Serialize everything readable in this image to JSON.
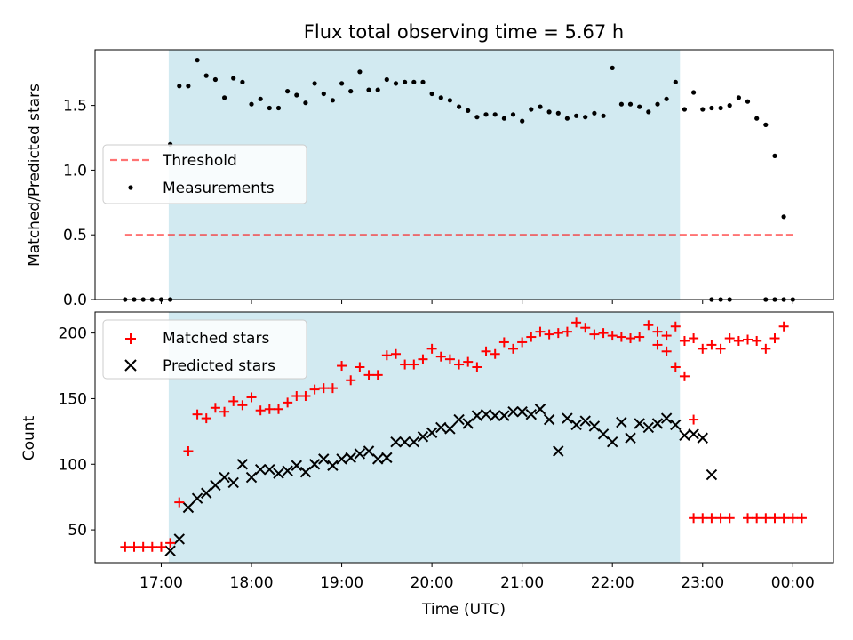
{
  "chart_data": [
    {
      "type": "scatter",
      "title": "Flux total observing time = 5.67 h",
      "xlabel": "",
      "ylabel": "Matched/Predicted stars",
      "xlim": [
        "16:16",
        "00:27"
      ],
      "ylim": [
        0,
        1.93
      ],
      "yticks": [
        "0.0",
        "0.5",
        "1.0",
        "1.5"
      ],
      "observing_window": [
        "17:05",
        "22:45"
      ],
      "threshold": {
        "value": 0.5,
        "from": "16:36",
        "to": "00:00"
      },
      "legend": {
        "position": "center-left",
        "entries": [
          "Threshold",
          "Measurements"
        ]
      },
      "series": [
        {
          "name": "Measurements",
          "marker": "dot",
          "color": "#000000",
          "points": [
            [
              "16:36",
              0
            ],
            [
              "16:42",
              0
            ],
            [
              "16:48",
              0
            ],
            [
              "16:54",
              0
            ],
            [
              "17:00",
              0
            ],
            [
              "17:06",
              0
            ],
            [
              "17:06",
              1.2
            ],
            [
              "17:12",
              1.65
            ],
            [
              "17:18",
              1.65
            ],
            [
              "17:24",
              1.85
            ],
            [
              "17:30",
              1.73
            ],
            [
              "17:36",
              1.7
            ],
            [
              "17:42",
              1.56
            ],
            [
              "17:48",
              1.71
            ],
            [
              "17:54",
              1.68
            ],
            [
              "18:00",
              1.51
            ],
            [
              "18:06",
              1.55
            ],
            [
              "18:12",
              1.48
            ],
            [
              "18:18",
              1.48
            ],
            [
              "18:24",
              1.61
            ],
            [
              "18:30",
              1.58
            ],
            [
              "18:36",
              1.52
            ],
            [
              "18:42",
              1.67
            ],
            [
              "18:48",
              1.59
            ],
            [
              "18:54",
              1.54
            ],
            [
              "19:00",
              1.67
            ],
            [
              "19:06",
              1.61
            ],
            [
              "19:12",
              1.76
            ],
            [
              "19:18",
              1.62
            ],
            [
              "19:24",
              1.62
            ],
            [
              "19:30",
              1.7
            ],
            [
              "19:36",
              1.67
            ],
            [
              "19:42",
              1.68
            ],
            [
              "19:48",
              1.68
            ],
            [
              "19:54",
              1.68
            ],
            [
              "20:00",
              1.59
            ],
            [
              "20:06",
              1.56
            ],
            [
              "20:12",
              1.54
            ],
            [
              "20:18",
              1.49
            ],
            [
              "20:24",
              1.46
            ],
            [
              "20:30",
              1.41
            ],
            [
              "20:36",
              1.43
            ],
            [
              "20:42",
              1.43
            ],
            [
              "20:48",
              1.4
            ],
            [
              "20:54",
              1.43
            ],
            [
              "21:00",
              1.38
            ],
            [
              "21:06",
              1.47
            ],
            [
              "21:12",
              1.49
            ],
            [
              "21:18",
              1.45
            ],
            [
              "21:24",
              1.44
            ],
            [
              "21:30",
              1.4
            ],
            [
              "21:36",
              1.42
            ],
            [
              "21:42",
              1.41
            ],
            [
              "21:48",
              1.44
            ],
            [
              "21:54",
              1.42
            ],
            [
              "22:00",
              1.79
            ],
            [
              "22:06",
              1.51
            ],
            [
              "22:12",
              1.51
            ],
            [
              "22:18",
              1.49
            ],
            [
              "22:24",
              1.45
            ],
            [
              "22:30",
              1.51
            ],
            [
              "22:36",
              1.55
            ],
            [
              "22:42",
              1.68
            ],
            [
              "22:48",
              1.47
            ],
            [
              "22:54",
              1.6
            ],
            [
              "23:00",
              1.47
            ],
            [
              "23:06",
              1.48
            ],
            [
              "23:12",
              1.48
            ],
            [
              "23:18",
              1.5
            ],
            [
              "23:24",
              1.56
            ],
            [
              "23:30",
              1.53
            ],
            [
              "23:36",
              1.4
            ],
            [
              "23:42",
              1.35
            ],
            [
              "23:48",
              1.11
            ],
            [
              "23:54",
              0.64
            ],
            [
              "23:06",
              0
            ],
            [
              "23:12",
              0
            ],
            [
              "23:18",
              0
            ],
            [
              "23:42",
              0
            ],
            [
              "23:48",
              0
            ],
            [
              "23:54",
              0
            ],
            [
              "00:00",
              0
            ]
          ]
        }
      ]
    },
    {
      "type": "scatter",
      "title": "",
      "xlabel": "Time (UTC)",
      "ylabel": "Count",
      "xlim": [
        "16:16",
        "00:27"
      ],
      "ylim": [
        25,
        216
      ],
      "xticks": [
        "17:00",
        "18:00",
        "19:00",
        "20:00",
        "21:00",
        "22:00",
        "23:00",
        "00:00"
      ],
      "yticks": [
        "50",
        "100",
        "150",
        "200"
      ],
      "observing_window": [
        "17:05",
        "22:45"
      ],
      "legend": {
        "position": "top-left",
        "entries": [
          "Matched stars",
          "Predicted stars"
        ]
      },
      "series": [
        {
          "name": "Matched stars",
          "marker": "plus",
          "color": "#ff0000",
          "points": [
            [
              "16:36",
              37
            ],
            [
              "16:42",
              37
            ],
            [
              "16:48",
              37
            ],
            [
              "16:54",
              37
            ],
            [
              "17:00",
              37
            ],
            [
              "17:06",
              40
            ],
            [
              "17:12",
              71
            ],
            [
              "17:18",
              110
            ],
            [
              "17:24",
              138
            ],
            [
              "17:30",
              135
            ],
            [
              "17:36",
              143
            ],
            [
              "17:42",
              140
            ],
            [
              "17:48",
              148
            ],
            [
              "17:54",
              145
            ],
            [
              "18:00",
              151
            ],
            [
              "18:06",
              141
            ],
            [
              "18:12",
              142
            ],
            [
              "18:18",
              142
            ],
            [
              "18:24",
              147
            ],
            [
              "18:30",
              152
            ],
            [
              "18:36",
              152
            ],
            [
              "18:42",
              157
            ],
            [
              "18:48",
              158
            ],
            [
              "18:54",
              158
            ],
            [
              "19:00",
              175
            ],
            [
              "19:06",
              164
            ],
            [
              "19:12",
              174
            ],
            [
              "19:18",
              168
            ],
            [
              "19:24",
              168
            ],
            [
              "19:30",
              183
            ],
            [
              "19:36",
              184
            ],
            [
              "19:42",
              176
            ],
            [
              "19:48",
              176
            ],
            [
              "19:54",
              180
            ],
            [
              "20:00",
              188
            ],
            [
              "20:06",
              182
            ],
            [
              "20:12",
              180
            ],
            [
              "20:18",
              176
            ],
            [
              "20:24",
              178
            ],
            [
              "20:30",
              174
            ],
            [
              "20:36",
              186
            ],
            [
              "20:42",
              184
            ],
            [
              "20:48",
              193
            ],
            [
              "20:54",
              188
            ],
            [
              "21:00",
              193
            ],
            [
              "21:06",
              197
            ],
            [
              "21:12",
              201
            ],
            [
              "21:18",
              199
            ],
            [
              "21:24",
              200
            ],
            [
              "21:30",
              201
            ],
            [
              "21:36",
              208
            ],
            [
              "21:42",
              204
            ],
            [
              "21:48",
              199
            ],
            [
              "21:54",
              200
            ],
            [
              "22:00",
              198
            ],
            [
              "22:06",
              197
            ],
            [
              "22:12",
              196
            ],
            [
              "22:18",
              197
            ],
            [
              "22:24",
              206
            ],
            [
              "22:30",
              191
            ],
            [
              "22:36",
              198
            ],
            [
              "22:42",
              205
            ],
            [
              "22:48",
              194
            ],
            [
              "22:54",
              196
            ],
            [
              "23:00",
              188
            ],
            [
              "23:06",
              191
            ],
            [
              "23:12",
              188
            ],
            [
              "23:18",
              196
            ],
            [
              "23:24",
              194
            ],
            [
              "23:30",
              195
            ],
            [
              "23:36",
              194
            ],
            [
              "23:42",
              188
            ],
            [
              "23:48",
              196
            ],
            [
              "23:54",
              205
            ],
            [
              "22:30",
              201
            ],
            [
              "22:36",
              186
            ],
            [
              "22:42",
              174
            ],
            [
              "22:48",
              167
            ],
            [
              "22:54",
              134
            ],
            [
              "22:54",
              59
            ],
            [
              "23:00",
              59
            ],
            [
              "23:06",
              59
            ],
            [
              "23:12",
              59
            ],
            [
              "23:18",
              59
            ],
            [
              "23:30",
              59
            ],
            [
              "23:36",
              59
            ],
            [
              "23:42",
              59
            ],
            [
              "23:48",
              59
            ],
            [
              "23:54",
              59
            ],
            [
              "00:00",
              59
            ],
            [
              "00:06",
              59
            ]
          ]
        },
        {
          "name": "Predicted stars",
          "marker": "x",
          "color": "#000000",
          "points": [
            [
              "17:06",
              34
            ],
            [
              "17:12",
              43
            ],
            [
              "17:18",
              67
            ],
            [
              "17:24",
              74
            ],
            [
              "17:30",
              78
            ],
            [
              "17:36",
              84
            ],
            [
              "17:42",
              90
            ],
            [
              "17:48",
              86
            ],
            [
              "17:54",
              100
            ],
            [
              "18:00",
              90
            ],
            [
              "18:06",
              96
            ],
            [
              "18:12",
              96
            ],
            [
              "18:18",
              93
            ],
            [
              "18:24",
              95
            ],
            [
              "18:30",
              99
            ],
            [
              "18:36",
              94
            ],
            [
              "18:42",
              100
            ],
            [
              "18:48",
              104
            ],
            [
              "18:54",
              99
            ],
            [
              "19:00",
              104
            ],
            [
              "19:06",
              105
            ],
            [
              "19:12",
              108
            ],
            [
              "19:18",
              110
            ],
            [
              "19:24",
              104
            ],
            [
              "19:30",
              105
            ],
            [
              "19:36",
              117
            ],
            [
              "19:42",
              117
            ],
            [
              "19:48",
              117
            ],
            [
              "19:54",
              121
            ],
            [
              "20:00",
              124
            ],
            [
              "20:06",
              128
            ],
            [
              "20:12",
              127
            ],
            [
              "20:18",
              134
            ],
            [
              "20:24",
              131
            ],
            [
              "20:30",
              137
            ],
            [
              "20:36",
              138
            ],
            [
              "20:42",
              137
            ],
            [
              "20:48",
              137
            ],
            [
              "20:54",
              140
            ],
            [
              "21:00",
              140
            ],
            [
              "21:06",
              138
            ],
            [
              "21:12",
              142
            ],
            [
              "21:18",
              134
            ],
            [
              "21:24",
              110
            ],
            [
              "21:30",
              135
            ],
            [
              "21:36",
              130
            ],
            [
              "21:42",
              133
            ],
            [
              "21:48",
              129
            ],
            [
              "21:54",
              123
            ],
            [
              "22:00",
              117
            ],
            [
              "22:06",
              132
            ],
            [
              "22:12",
              120
            ],
            [
              "22:18",
              131
            ],
            [
              "22:24",
              128
            ],
            [
              "22:30",
              131
            ],
            [
              "22:36",
              135
            ],
            [
              "22:42",
              130
            ],
            [
              "22:48",
              122
            ],
            [
              "22:54",
              123
            ],
            [
              "23:00",
              120
            ],
            [
              "23:06",
              92
            ]
          ]
        }
      ]
    }
  ]
}
